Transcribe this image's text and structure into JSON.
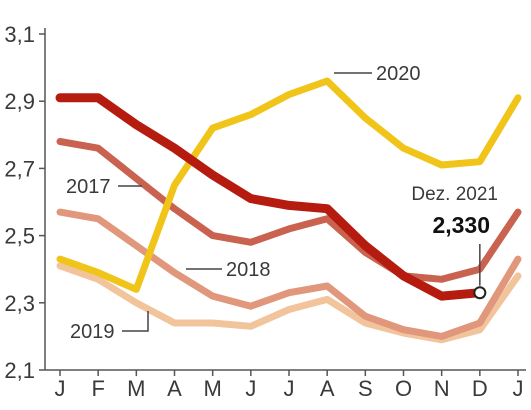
{
  "chart_data": {
    "type": "line",
    "categories": [
      "J",
      "F",
      "M",
      "A",
      "M",
      "J",
      "J",
      "A",
      "S",
      "O",
      "N",
      "D",
      "J"
    ],
    "ylim": [
      2.1,
      3.1
    ],
    "yticks": [
      "2,1",
      "2,3",
      "2,5",
      "2,7",
      "2,9",
      "3,1"
    ],
    "grid": false,
    "series": [
      {
        "name": "2019",
        "color": "#f2c49c",
        "values": [
          2.41,
          2.37,
          2.3,
          2.24,
          2.24,
          2.23,
          2.28,
          2.31,
          2.24,
          2.21,
          2.19,
          2.22,
          2.38
        ]
      },
      {
        "name": "2018",
        "color": "#e0977b",
        "values": [
          2.57,
          2.55,
          2.47,
          2.39,
          2.32,
          2.29,
          2.33,
          2.35,
          2.26,
          2.22,
          2.2,
          2.24,
          2.43
        ]
      },
      {
        "name": "2017",
        "color": "#c9624f",
        "values": [
          2.78,
          2.76,
          2.67,
          2.58,
          2.5,
          2.48,
          2.52,
          2.55,
          2.45,
          2.38,
          2.37,
          2.4,
          2.57
        ]
      },
      {
        "name": "2020",
        "color": "#f0c419",
        "values": [
          2.43,
          2.39,
          2.34,
          2.65,
          2.82,
          2.86,
          2.92,
          2.96,
          2.85,
          2.76,
          2.71,
          2.72,
          2.91
        ]
      },
      {
        "name": "",
        "color": "#b51c0f",
        "values": [
          2.91,
          2.91,
          2.83,
          2.76,
          2.68,
          2.61,
          2.59,
          2.58,
          2.47,
          2.38,
          2.32,
          2.33,
          null
        ]
      }
    ],
    "annotations": {
      "point_label": "Dez. 2021",
      "point_value": "2,330"
    }
  }
}
